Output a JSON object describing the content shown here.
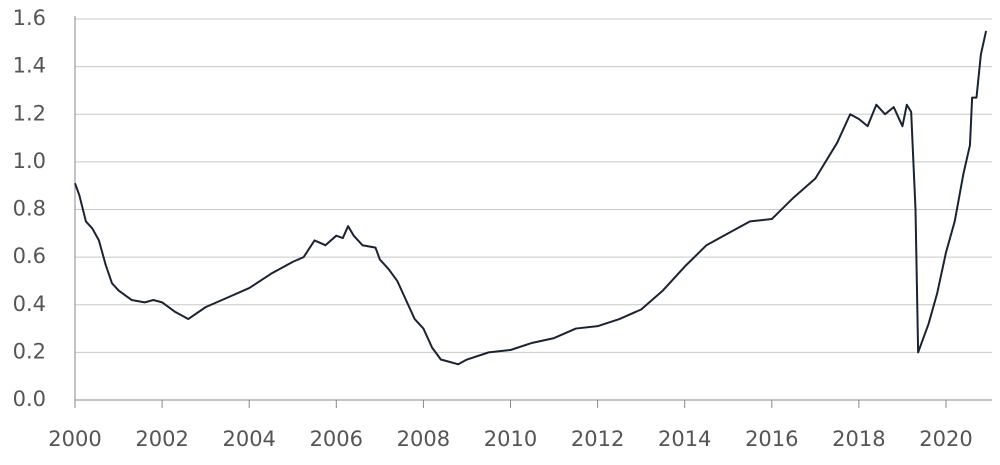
{
  "chart_data": {
    "type": "line",
    "x": [
      2000.0,
      2000.1,
      2000.25,
      2000.4,
      2000.55,
      2000.7,
      2000.85,
      2001.0,
      2001.3,
      2001.6,
      2001.8,
      2002.0,
      2002.3,
      2002.6,
      2003.0,
      2003.5,
      2004.0,
      2004.5,
      2005.0,
      2005.25,
      2005.5,
      2005.75,
      2006.0,
      2006.15,
      2006.27,
      2006.4,
      2006.6,
      2006.9,
      2007.0,
      2007.2,
      2007.4,
      2007.6,
      2007.8,
      2008.0,
      2008.2,
      2008.4,
      2008.6,
      2008.8,
      2009.0,
      2009.5,
      2010.0,
      2010.5,
      2011.0,
      2011.5,
      2012.0,
      2012.5,
      2013.0,
      2013.5,
      2014.0,
      2014.5,
      2015.0,
      2015.5,
      2016.0,
      2016.5,
      2017.0,
      2017.5,
      2017.8,
      2018.0,
      2018.2,
      2018.4,
      2018.6,
      2018.8,
      2019.0,
      2019.1,
      2019.2,
      2019.3,
      2019.36,
      2019.6,
      2019.8,
      2020.0,
      2020.2,
      2020.4,
      2020.55,
      2020.6,
      2020.7,
      2020.8,
      2020.92
    ],
    "series": [
      {
        "color": "#1a2332",
        "values": [
          0.91,
          0.86,
          0.75,
          0.72,
          0.67,
          0.57,
          0.49,
          0.46,
          0.42,
          0.41,
          0.42,
          0.41,
          0.37,
          0.34,
          0.39,
          0.43,
          0.47,
          0.53,
          0.58,
          0.6,
          0.67,
          0.65,
          0.69,
          0.68,
          0.73,
          0.69,
          0.65,
          0.64,
          0.59,
          0.55,
          0.5,
          0.42,
          0.34,
          0.3,
          0.22,
          0.17,
          0.16,
          0.15,
          0.17,
          0.2,
          0.21,
          0.24,
          0.26,
          0.3,
          0.31,
          0.34,
          0.38,
          0.46,
          0.56,
          0.65,
          0.7,
          0.75,
          0.76,
          0.85,
          0.93,
          1.08,
          1.2,
          1.18,
          1.15,
          1.24,
          1.2,
          1.23,
          1.15,
          1.24,
          1.21,
          0.8,
          0.2,
          0.32,
          0.45,
          0.62,
          0.75,
          0.95,
          1.07,
          1.27,
          1.27,
          1.45,
          1.55
        ]
      }
    ],
    "xlim": [
      2000,
      2021.5
    ],
    "xticks": [
      2000,
      2002,
      2004,
      2006,
      2008,
      2010,
      2012,
      2014,
      2016,
      2018,
      2020
    ],
    "ylim": [
      0,
      1.6
    ],
    "yticks": [
      {
        "value": 0,
        "label": "0.0"
      },
      0.2,
      0.4,
      0.6,
      0.8,
      {
        "value": 1,
        "label": "1.0"
      },
      1.2,
      1.4,
      1.6
    ],
    "grid": true
  }
}
